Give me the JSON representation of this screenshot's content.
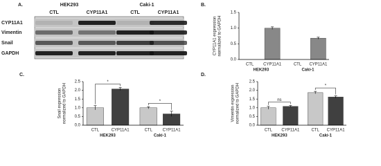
{
  "blot": {
    "panel": "A.",
    "groups": [
      "HEK293",
      "Caki-1"
    ],
    "lanes": [
      "CTL",
      "CYP11A1",
      "CTL",
      "CYP11A1"
    ],
    "rows": [
      "CYP11A1",
      "Vimentin",
      "Snail",
      "GAPDH"
    ]
  },
  "chart_data": [
    {
      "type": "bar",
      "panel": "B.",
      "ylabel": [
        "CYP11A1 expression",
        "normalized to GAPDH"
      ],
      "categories": [
        "CTL",
        "CYP11A1",
        "CTL",
        "CYP11A1"
      ],
      "groups": [
        "HEK293",
        "Caki-1"
      ],
      "values": [
        0,
        1.0,
        0,
        0.68
      ],
      "errors": [
        0,
        0.04,
        0,
        0.03
      ],
      "colors": [
        "#888888",
        "#888888",
        "#888888",
        "#888888"
      ],
      "ylim": [
        0,
        1.5
      ],
      "yticks": [
        {
          "value": 0,
          "label": "0.0"
        },
        0.5,
        {
          "value": 1,
          "label": "1.0"
        },
        1.5
      ]
    },
    {
      "type": "bar",
      "panel": "C.",
      "ylabel": [
        "Snail expression",
        "normalized to GAPDH"
      ],
      "categories": [
        "CTL",
        "CYP11A1",
        "CTL",
        "CYP11A1"
      ],
      "groups": [
        "HEK293",
        "Caki-1"
      ],
      "values": [
        1.0,
        2.08,
        1.0,
        0.65
      ],
      "errors": [
        0.12,
        0.08,
        0.06,
        0.15
      ],
      "colors": [
        "#c8c8c8",
        "#404040",
        "#c8c8c8",
        "#404040"
      ],
      "annotations": [
        "*",
        "*"
      ],
      "ylim": [
        0,
        2.5
      ],
      "yticks": [
        {
          "value": 0,
          "label": "0.0"
        },
        0.5,
        {
          "value": 1,
          "label": "1.0"
        },
        1.5,
        {
          "value": 2,
          "label": "2.0"
        },
        2.5
      ]
    },
    {
      "type": "bar",
      "panel": "D.",
      "ylabel": [
        "Vimentin expression",
        "normalized to GAPDH"
      ],
      "categories": [
        "CTL",
        "CYP11A1",
        "CTL",
        "CYP11A1"
      ],
      "groups": [
        "HEK293",
        "Caki-1"
      ],
      "values": [
        1.0,
        1.08,
        1.87,
        1.62
      ],
      "errors": [
        0.08,
        0.05,
        0.07,
        0.06
      ],
      "colors": [
        "#c8c8c8",
        "#404040",
        "#c8c8c8",
        "#404040"
      ],
      "annotations": [
        "ns",
        "*"
      ],
      "ylim": [
        0,
        2.5
      ],
      "yticks": [
        {
          "value": 0,
          "label": "0.0"
        },
        0.5,
        {
          "value": 1,
          "label": "1.0"
        },
        1.5,
        {
          "value": 2,
          "label": "2.0"
        },
        2.5
      ]
    }
  ]
}
